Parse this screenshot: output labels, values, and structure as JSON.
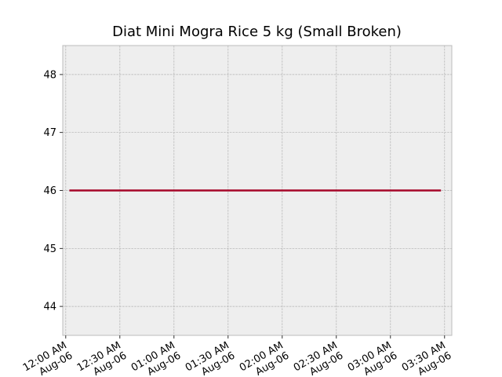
{
  "chart_data": {
    "type": "line",
    "title": "Diat Mini Mogra Rice 5 kg (Small Broken)",
    "xlabel": "",
    "ylabel": "",
    "x_ticks": [
      {
        "time": "00:00",
        "label": [
          "12:00 AM",
          "Aug-06"
        ]
      },
      {
        "time": "00:30",
        "label": [
          "12:30 AM",
          "Aug-06"
        ]
      },
      {
        "time": "01:00",
        "label": [
          "01:00 AM",
          "Aug-06"
        ]
      },
      {
        "time": "01:30",
        "label": [
          "01:30 AM",
          "Aug-06"
        ]
      },
      {
        "time": "02:00",
        "label": [
          "02:00 AM",
          "Aug-06"
        ]
      },
      {
        "time": "02:30",
        "label": [
          "02:30 AM",
          "Aug-06"
        ]
      },
      {
        "time": "03:00",
        "label": [
          "03:00 AM",
          "Aug-06"
        ]
      },
      {
        "time": "03:30",
        "label": [
          "03:30 AM",
          "Aug-06"
        ]
      }
    ],
    "xlim": [
      "Aug-06 11:58 PM (prev)",
      "Aug-06 03:34 AM"
    ],
    "xlim_time": [
      "-00:01:40",
      "03:34"
    ],
    "ylim": [
      43.5,
      48.5
    ],
    "y_ticks": [
      44,
      45,
      46,
      47,
      48
    ],
    "grid": true,
    "series": [
      {
        "color": "#a60628",
        "x": [
          "00:02",
          "03:28"
        ],
        "values": [
          46,
          46
        ]
      }
    ]
  }
}
